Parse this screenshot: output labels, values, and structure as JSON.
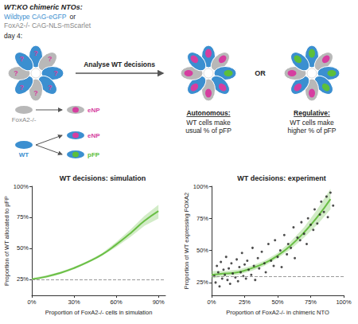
{
  "diagram": {
    "header": {
      "title": "WT:KO chimeric NTOs:",
      "wt_line": "Wildtype CAG-eGFP",
      "or": "or",
      "ko_line": "FoxA2-/- CAG-NLS-mScarlet"
    },
    "day": "day 4:",
    "step": "Analyse WT decisions",
    "unknown_mark": "?",
    "between": "OR",
    "lineage": {
      "ko": {
        "label": "FoxA2-/-",
        "fates": [
          "eNP"
        ]
      },
      "wt": {
        "label": "WT",
        "fates": [
          "eNP",
          "pFP"
        ]
      }
    },
    "outcomes": [
      {
        "title": "Autonomous:",
        "text": "WT cells make usual % of pFP"
      },
      {
        "title": "Regulative:",
        "text": "WT cells make higher % of pFP"
      }
    ]
  },
  "chart_data": [
    {
      "type": "line",
      "title": "WT decisions: simulation",
      "x_label": "Proportion of FoxA2-/- cells in simulation",
      "y_label": "Proportion of WT allocated to pFP",
      "x": [
        0,
        10,
        20,
        30,
        40,
        50,
        60,
        70,
        80,
        90
      ],
      "values": [
        25,
        27,
        30,
        34,
        39,
        45,
        53,
        62,
        72,
        80
      ],
      "ci_lower": [
        24,
        26,
        29,
        33,
        38,
        44,
        51,
        59,
        68,
        74
      ],
      "ci_upper": [
        26,
        28,
        31,
        35,
        40,
        46,
        55,
        65,
        76,
        85
      ],
      "color": "#6abf45",
      "reference_line": 25,
      "xlim": [
        0,
        95
      ],
      "xticks": [
        {
          "value": 0,
          "label": "0%"
        },
        {
          "value": 30,
          "label": "30%"
        },
        {
          "value": 60,
          "label": "60%"
        },
        {
          "value": 90,
          "label": "90%"
        }
      ],
      "ylim": [
        12,
        100
      ],
      "yticks": [
        {
          "value": 25,
          "label": "25%"
        },
        {
          "value": 50,
          "label": "50%"
        },
        {
          "value": 75,
          "label": "75%"
        },
        {
          "value": 100,
          "label": "100%"
        }
      ],
      "grid": false
    },
    {
      "type": "scatter",
      "title": "WT decisions: experiment",
      "x_label": "Proportion of FoxA2-/- in chimeric NTO",
      "y_label": "Proportion of WT expressing FOXA2",
      "x": [
        2,
        3,
        4,
        5,
        6,
        7,
        8,
        9,
        10,
        11,
        12,
        13,
        14,
        15,
        16,
        18,
        19,
        20,
        21,
        22,
        23,
        24,
        25,
        26,
        27,
        28,
        30,
        31,
        32,
        33,
        35,
        36,
        38,
        40,
        41,
        43,
        45,
        47,
        48,
        50,
        52,
        53,
        55,
        57,
        58,
        60,
        62,
        63,
        65,
        67,
        68,
        70,
        72,
        73,
        75,
        77,
        78,
        80,
        82,
        83,
        85,
        87,
        88,
        90,
        92
      ],
      "values": [
        30,
        25,
        38,
        33,
        22,
        41,
        28,
        35,
        31,
        45,
        27,
        36,
        24,
        40,
        32,
        29,
        43,
        26,
        37,
        33,
        48,
        30,
        39,
        28,
        42,
        35,
        31,
        52,
        38,
        27,
        44,
        36,
        49,
        40,
        33,
        55,
        42,
        38,
        58,
        45,
        50,
        37,
        62,
        47,
        55,
        52,
        68,
        44,
        60,
        58,
        72,
        63,
        55,
        75,
        70,
        66,
        82,
        71,
        78,
        88,
        80,
        92,
        76,
        95,
        85
      ],
      "color": "#222222",
      "marker": "circle",
      "fit": {
        "x": [
          0,
          10,
          20,
          30,
          40,
          50,
          60,
          70,
          80,
          90
        ],
        "values": [
          31,
          32,
          33,
          36,
          40,
          46,
          54,
          64,
          76,
          90
        ],
        "ci_lower": [
          28,
          30,
          31,
          34,
          38,
          44,
          51,
          60,
          70,
          82
        ],
        "ci_upper": [
          34,
          34,
          35,
          38,
          42,
          48,
          57,
          68,
          82,
          98
        ],
        "color": "#6abf45"
      },
      "reference_line": 30,
      "xlim": [
        0,
        100
      ],
      "xticks": [
        {
          "value": 0,
          "label": "0%"
        },
        {
          "value": 25,
          "label": "25%"
        },
        {
          "value": 50,
          "label": "50%"
        },
        {
          "value": 75,
          "label": "75%"
        },
        {
          "value": 100,
          "label": "100%"
        }
      ],
      "ylim": [
        15,
        100
      ],
      "yticks": [
        {
          "value": 25,
          "label": "25%"
        },
        {
          "value": 50,
          "label": "50%"
        },
        {
          "value": 75,
          "label": "75%"
        },
        {
          "value": 100,
          "label": "100%"
        }
      ],
      "grid": false
    }
  ]
}
